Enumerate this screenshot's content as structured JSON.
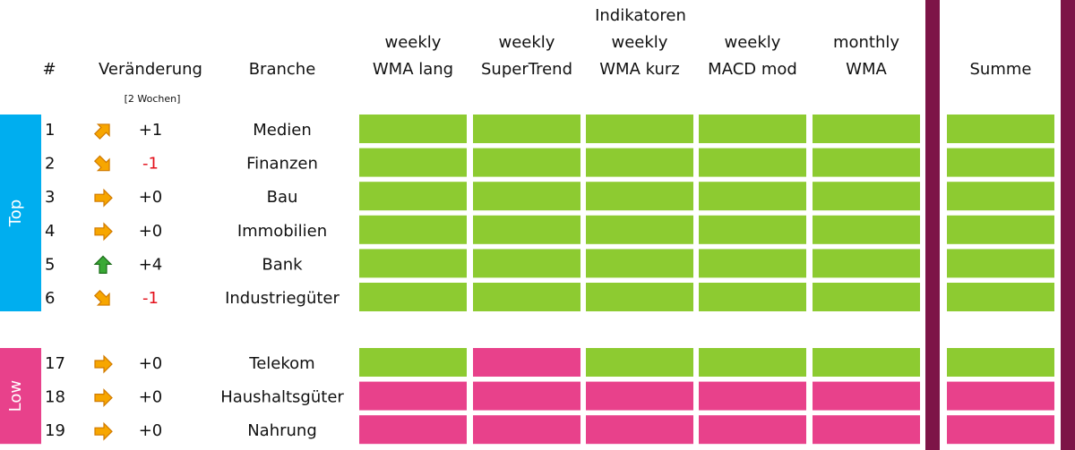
{
  "header": {
    "title": "Indikatoren",
    "rank": "#",
    "change": "Veränderung",
    "change_note": "[2 Wochen]",
    "sector": "Branche",
    "sum": "Summe",
    "indicators": [
      [
        "weekly",
        "WMA lang"
      ],
      [
        "weekly",
        "SuperTrend"
      ],
      [
        "weekly",
        "WMA kurz"
      ],
      [
        "weekly",
        "MACD mod"
      ],
      [
        "monthly",
        "WMA"
      ]
    ]
  },
  "colors": {
    "top": "#00aeef",
    "low": "#e8418b",
    "divider": "#7d1447",
    "up": "#8dcb31",
    "down": "#e8418b",
    "negative": "#e3101b"
  },
  "groups": [
    {
      "label": "Top",
      "color": "top",
      "rows": [
        {
          "rank": "1",
          "change": "+1",
          "sector": "Medien",
          "cells": [
            "up",
            "up",
            "up",
            "up",
            "up"
          ],
          "sum": "up"
        },
        {
          "rank": "2",
          "change": "-1",
          "sector": "Finanzen",
          "cells": [
            "up",
            "up",
            "up",
            "up",
            "up"
          ],
          "sum": "up"
        },
        {
          "rank": "3",
          "change": "+0",
          "sector": "Bau",
          "cells": [
            "up",
            "up",
            "up",
            "up",
            "up"
          ],
          "sum": "up"
        },
        {
          "rank": "4",
          "change": "+0",
          "sector": "Immobilien",
          "cells": [
            "up",
            "up",
            "up",
            "up",
            "up"
          ],
          "sum": "up"
        },
        {
          "rank": "5",
          "change": "+4",
          "sector": "Bank",
          "cells": [
            "up",
            "up",
            "up",
            "up",
            "up"
          ],
          "sum": "up"
        },
        {
          "rank": "6",
          "change": "-1",
          "sector": "Industriegüter",
          "cells": [
            "up",
            "up",
            "up",
            "up",
            "up"
          ],
          "sum": "up"
        }
      ]
    },
    {
      "label": "Low",
      "color": "low",
      "rows": [
        {
          "rank": "17",
          "change": "+0",
          "sector": "Telekom",
          "cells": [
            "up",
            "down",
            "up",
            "up",
            "up"
          ],
          "sum": "up"
        },
        {
          "rank": "18",
          "change": "+0",
          "sector": "Haushaltsgüter",
          "cells": [
            "down",
            "down",
            "down",
            "down",
            "down"
          ],
          "sum": "down"
        },
        {
          "rank": "19",
          "change": "+0",
          "sector": "Nahrung",
          "cells": [
            "down",
            "down",
            "down",
            "down",
            "down"
          ],
          "sum": "down"
        }
      ]
    }
  ]
}
